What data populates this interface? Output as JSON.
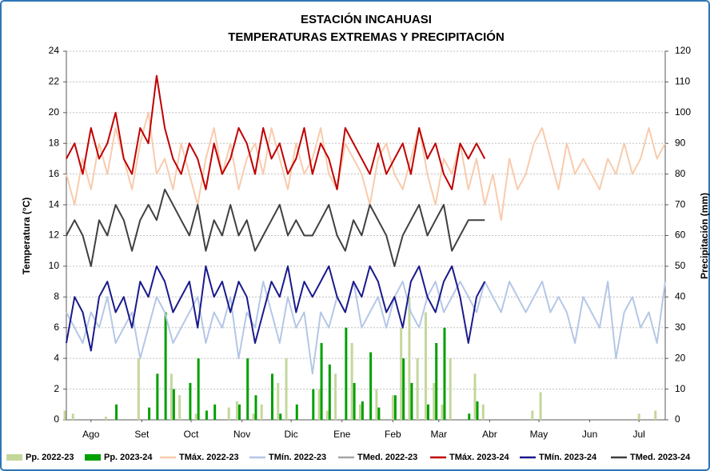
{
  "chart_data": {
    "type": "line",
    "title": "ESTACIÓN INCAHUASI",
    "subtitle": "TEMPERATURAS EXTREMAS Y PRECIPITACIÓN",
    "y_label": "Temperatura (°C)",
    "y2_label": "Precipitación (mm)",
    "x": [
      0,
      5,
      10,
      15,
      20,
      25,
      30,
      35,
      40,
      45,
      50,
      55,
      60,
      65,
      70,
      75,
      80,
      85,
      90,
      95,
      100,
      105,
      110,
      115,
      120,
      125,
      130,
      135,
      140,
      145,
      150,
      155,
      160,
      165,
      170,
      175,
      180,
      185,
      190,
      195,
      200,
      205,
      210,
      215,
      220,
      225,
      230,
      235,
      240,
      245,
      250,
      255,
      260,
      265,
      270,
      275,
      280,
      285,
      290,
      295,
      300,
      305,
      310,
      315,
      320,
      325,
      330,
      335,
      340,
      345,
      350,
      355,
      360,
      365
    ],
    "xlim": [
      0,
      365
    ],
    "xticks": [
      {
        "value": 15,
        "label": "Ago"
      },
      {
        "value": 46,
        "label": "Set"
      },
      {
        "value": 76,
        "label": "Oct"
      },
      {
        "value": 107,
        "label": "Nov"
      },
      {
        "value": 137,
        "label": "Dic"
      },
      {
        "value": 168,
        "label": "Ene"
      },
      {
        "value": 199,
        "label": "Feb"
      },
      {
        "value": 227,
        "label": "Mar"
      },
      {
        "value": 258,
        "label": "Abr"
      },
      {
        "value": 288,
        "label": "May"
      },
      {
        "value": 319,
        "label": "Jun"
      },
      {
        "value": 349,
        "label": "Jul"
      }
    ],
    "ylim": [
      0,
      24
    ],
    "yticks": [
      0,
      2,
      4,
      6,
      8,
      10,
      12,
      14,
      16,
      18,
      20,
      22,
      24
    ],
    "y2lim": [
      0,
      120
    ],
    "y2ticks": [
      0,
      10,
      20,
      30,
      40,
      50,
      60,
      70,
      80,
      90,
      100,
      110,
      120
    ],
    "grid": true,
    "legend": "bottom",
    "series": [
      {
        "name": "Pp. 2022-23",
        "type": "bar",
        "axis": "y2",
        "color": "#c4d79b",
        "values": [
          3,
          2,
          0,
          0,
          0,
          1,
          0,
          0,
          0,
          20,
          0,
          0,
          0,
          15,
          8,
          0,
          2,
          0,
          0,
          0,
          4,
          6,
          0,
          2,
          5,
          0,
          12,
          20,
          0,
          0,
          0,
          10,
          3,
          15,
          0,
          25,
          5,
          0,
          10,
          0,
          8,
          30,
          40,
          20,
          35,
          12,
          5,
          20,
          0,
          0,
          15,
          5,
          0,
          0,
          0,
          0,
          0,
          3,
          9,
          0,
          0,
          0,
          0,
          0,
          0,
          0,
          0,
          0,
          0,
          0,
          2,
          0,
          3,
          0
        ]
      },
      {
        "name": "Pp. 2023-24",
        "type": "bar",
        "axis": "y2",
        "color": "#00a000",
        "values": [
          0,
          0,
          0,
          0,
          0,
          0,
          5,
          0,
          0,
          0,
          4,
          15,
          35,
          10,
          0,
          12,
          20,
          3,
          5,
          0,
          0,
          5,
          20,
          8,
          0,
          15,
          2,
          0,
          5,
          0,
          10,
          25,
          18,
          0,
          30,
          12,
          6,
          22,
          4,
          0,
          8,
          20,
          12,
          0,
          5,
          25,
          30,
          0,
          0,
          2,
          6,
          0,
          null,
          null,
          null,
          null,
          null,
          null,
          null,
          null,
          null,
          null,
          null,
          null,
          null,
          null,
          null,
          null,
          null,
          null,
          null,
          null,
          null,
          null
        ]
      },
      {
        "name": "TMáx. 2022-23",
        "type": "line",
        "color": "#f8cbad",
        "values": [
          16,
          14,
          17,
          15,
          18,
          16,
          19,
          17,
          15,
          18,
          20,
          16,
          17,
          15,
          18,
          16,
          14,
          17,
          19,
          16,
          18,
          15,
          17,
          18,
          16,
          19,
          17,
          15,
          18,
          16,
          17,
          19,
          16,
          15,
          18,
          17,
          16,
          14,
          17,
          18,
          16,
          15,
          17,
          19,
          16,
          14,
          17,
          16,
          18,
          15,
          17,
          14,
          16,
          13,
          17,
          15,
          16,
          18,
          19,
          17,
          15,
          18,
          16,
          17,
          16,
          15,
          17,
          16,
          18,
          16,
          17,
          19,
          17,
          18
        ]
      },
      {
        "name": "TMín. 2022-23",
        "type": "line",
        "color": "#b4c7e7",
        "values": [
          7,
          6,
          5,
          7,
          6,
          8,
          5,
          6,
          7,
          4,
          6,
          8,
          7,
          5,
          6,
          7,
          8,
          5,
          7,
          6,
          8,
          4,
          7,
          6,
          9,
          7,
          5,
          8,
          6,
          7,
          3,
          7,
          6,
          8,
          7,
          9,
          6,
          7,
          8,
          6,
          8,
          9,
          7,
          6,
          8,
          9,
          7,
          8,
          9,
          8,
          7,
          9,
          8,
          7,
          9,
          8,
          7,
          8,
          9,
          7,
          8,
          7,
          5,
          8,
          7,
          6,
          9,
          4,
          7,
          8,
          6,
          7,
          5,
          9
        ]
      },
      {
        "name": "TMed. 2022-23",
        "type": "line",
        "color": "#a6a6a6",
        "values": [
          null,
          null,
          null,
          null,
          null,
          null,
          null,
          null,
          null,
          null,
          null,
          null,
          null,
          null,
          null,
          null,
          null,
          null,
          null,
          null,
          null,
          null,
          null,
          null,
          null,
          null,
          null,
          null,
          null,
          null,
          null,
          null,
          null,
          null,
          null,
          null,
          null,
          null,
          null,
          null,
          null,
          null,
          null,
          null,
          null,
          null,
          null,
          null,
          null,
          null,
          null,
          null,
          null,
          null,
          null,
          null,
          null,
          null,
          null,
          null,
          null,
          null,
          null,
          null,
          null,
          null,
          null,
          null,
          null,
          null,
          null,
          null,
          null,
          null
        ]
      },
      {
        "name": "TMáx. 2023-24",
        "type": "line",
        "color": "#c00000",
        "values": [
          17,
          18,
          16,
          19,
          17,
          18,
          20,
          17,
          16,
          19,
          18,
          22.4,
          19,
          17,
          16,
          18,
          17,
          15,
          18,
          16,
          17,
          19,
          18,
          16,
          19,
          17,
          18,
          16,
          17,
          19,
          16,
          18,
          17,
          15,
          19,
          18,
          17,
          16,
          18,
          16,
          17,
          18,
          16,
          19,
          17,
          18,
          16,
          15,
          18,
          17,
          18,
          17,
          null,
          null,
          null,
          null,
          null,
          null,
          null,
          null,
          null,
          null,
          null,
          null,
          null,
          null,
          null,
          null,
          null,
          null,
          null,
          null,
          null,
          null
        ]
      },
      {
        "name": "TMín. 2023-24",
        "type": "line",
        "color": "#1a1a8c",
        "values": [
          5,
          8,
          7,
          4.5,
          8,
          9,
          7,
          8,
          6,
          9,
          8,
          10,
          9,
          7,
          8,
          9,
          6,
          10,
          8,
          9,
          7,
          9,
          8,
          5,
          7,
          9,
          8,
          10,
          7,
          9,
          8,
          9,
          10,
          8,
          7,
          9,
          8,
          10,
          9,
          7,
          8,
          6,
          9,
          10,
          8,
          7,
          9,
          10,
          8,
          5,
          8,
          9,
          null,
          null,
          null,
          null,
          null,
          null,
          null,
          null,
          null,
          null,
          null,
          null,
          null,
          null,
          null,
          null,
          null,
          null,
          null,
          null,
          null,
          null
        ]
      },
      {
        "name": "TMed. 2023-24",
        "type": "line",
        "color": "#404040",
        "values": [
          12,
          13,
          12,
          10,
          13,
          12,
          14,
          13,
          11,
          13,
          14,
          13,
          15,
          14,
          13,
          12,
          14,
          11,
          13,
          12,
          14,
          12,
          13,
          11,
          12,
          13,
          14,
          12,
          13,
          12,
          12,
          13,
          14,
          12,
          11,
          13,
          12,
          14,
          13,
          12,
          10,
          12,
          13,
          14,
          12,
          13,
          14,
          11,
          12,
          13,
          13,
          13,
          null,
          null,
          null,
          null,
          null,
          null,
          null,
          null,
          null,
          null,
          null,
          null,
          null,
          null,
          null,
          null,
          null,
          null,
          null,
          null,
          null,
          null
        ]
      }
    ]
  }
}
